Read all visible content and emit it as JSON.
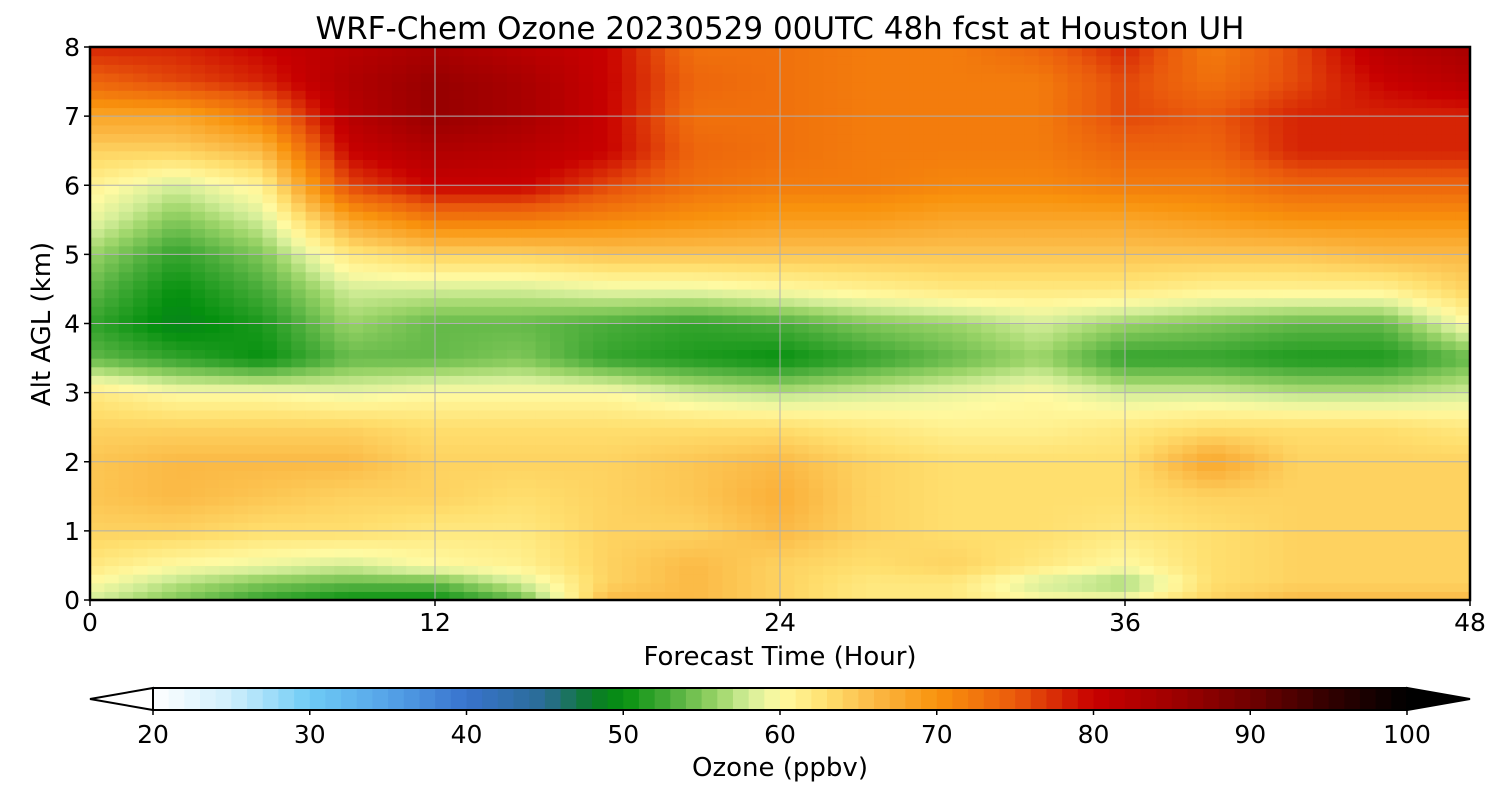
{
  "chart_data": {
    "type": "heatmap",
    "title": "WRF-Chem Ozone  20230529 00UTC 48h fcst at Houston UH",
    "xlabel": "Forecast Time (Hour)",
    "ylabel": "Alt AGL (km)",
    "xlim": [
      0,
      48
    ],
    "ylim": [
      0,
      8
    ],
    "xticks": [
      0,
      12,
      24,
      36,
      48
    ],
    "yticks": [
      0,
      1,
      2,
      3,
      4,
      5,
      6,
      7,
      8
    ],
    "grid": true,
    "x": [
      0,
      3,
      6,
      9,
      12,
      15,
      18,
      21,
      24,
      27,
      30,
      33,
      36,
      39,
      42,
      45,
      48
    ],
    "y": [
      0,
      0.25,
      0.5,
      1,
      1.5,
      2,
      2.5,
      3,
      3.5,
      4,
      4.5,
      5,
      5.5,
      6,
      6.5,
      7,
      7.5,
      8
    ],
    "z": [
      [
        58,
        55,
        52,
        50,
        50,
        54,
        66,
        66,
        64,
        62,
        62,
        60,
        60,
        64,
        66,
        66,
        66
      ],
      [
        60,
        57,
        55,
        54,
        54,
        58,
        64,
        66,
        64,
        62,
        62,
        58,
        56,
        63,
        64,
        64,
        64
      ],
      [
        62,
        60,
        59,
        58,
        60,
        61,
        64,
        66,
        64,
        63,
        64,
        62,
        60,
        63,
        64,
        64,
        64
      ],
      [
        64,
        64,
        63,
        63,
        62,
        62,
        64,
        64,
        66,
        64,
        63,
        63,
        62,
        63,
        64,
        64,
        64
      ],
      [
        65,
        66,
        65,
        64,
        64,
        63,
        64,
        65,
        67,
        64,
        63,
        63,
        63,
        64,
        64,
        64,
        64
      ],
      [
        65,
        66,
        66,
        66,
        64,
        64,
        64,
        65,
        66,
        64,
        63,
        63,
        63,
        68,
        64,
        64,
        64
      ],
      [
        64,
        64,
        64,
        64,
        63,
        63,
        63,
        63,
        63,
        62,
        61,
        61,
        62,
        63,
        63,
        63,
        62
      ],
      [
        62,
        60,
        60,
        59,
        60,
        60,
        60,
        58,
        57,
        58,
        59,
        60,
        58,
        58,
        57,
        57,
        58
      ],
      [
        54,
        52,
        50,
        54,
        54,
        55,
        52,
        51,
        50,
        52,
        54,
        56,
        52,
        52,
        51,
        51,
        54
      ],
      [
        52,
        49,
        51,
        56,
        54,
        54,
        53,
        52,
        53,
        55,
        56,
        58,
        56,
        55,
        54,
        54,
        60
      ],
      [
        54,
        50,
        53,
        58,
        58,
        58,
        59,
        59,
        60,
        61,
        62,
        62,
        62,
        61,
        61,
        61,
        64
      ],
      [
        56,
        52,
        55,
        62,
        64,
        64,
        65,
        65,
        65,
        65,
        65,
        65,
        65,
        65,
        65,
        66,
        66
      ],
      [
        59,
        55,
        58,
        68,
        72,
        72,
        71,
        70,
        69,
        69,
        68,
        68,
        68,
        69,
        70,
        70,
        70
      ],
      [
        61,
        58,
        61,
        76,
        80,
        80,
        76,
        73,
        72,
        72,
        71,
        71,
        72,
        72,
        74,
        74,
        74
      ],
      [
        64,
        64,
        66,
        80,
        83,
        82,
        80,
        74,
        73,
        72,
        72,
        72,
        74,
        74,
        78,
        78,
        78
      ],
      [
        68,
        68,
        72,
        82,
        86,
        84,
        80,
        73,
        73,
        72,
        72,
        72,
        76,
        75,
        78,
        78,
        78
      ],
      [
        74,
        76,
        78,
        83,
        86,
        84,
        80,
        74,
        73,
        72,
        72,
        72,
        76,
        73,
        76,
        80,
        82
      ],
      [
        78,
        78,
        80,
        82,
        84,
        82,
        80,
        73,
        73,
        72,
        72,
        74,
        78,
        72,
        76,
        82,
        84
      ]
    ],
    "colorbar": {
      "label": "Ozone  (ppbv)",
      "min": 20,
      "max": 100,
      "ticks": [
        20,
        30,
        40,
        50,
        60,
        70,
        80,
        90,
        100
      ],
      "extend": "both",
      "colors": [
        {
          "value": 20,
          "color": "#ffffff"
        },
        {
          "value": 25,
          "color": "#cfeefc"
        },
        {
          "value": 30,
          "color": "#6ecbf5"
        },
        {
          "value": 35,
          "color": "#55a3e8"
        },
        {
          "value": 40,
          "color": "#3873cd"
        },
        {
          "value": 45,
          "color": "#2a6c94"
        },
        {
          "value": 48,
          "color": "#0b7a2a"
        },
        {
          "value": 50,
          "color": "#05900f"
        },
        {
          "value": 53,
          "color": "#4aad3a"
        },
        {
          "value": 56,
          "color": "#9bd468"
        },
        {
          "value": 58,
          "color": "#d4ee99"
        },
        {
          "value": 60,
          "color": "#fffaa2"
        },
        {
          "value": 63,
          "color": "#ffdf6e"
        },
        {
          "value": 66,
          "color": "#fbb945"
        },
        {
          "value": 70,
          "color": "#f9930d"
        },
        {
          "value": 75,
          "color": "#ea5a0c"
        },
        {
          "value": 80,
          "color": "#c80000"
        },
        {
          "value": 85,
          "color": "#a00000"
        },
        {
          "value": 90,
          "color": "#700000"
        },
        {
          "value": 95,
          "color": "#320000"
        },
        {
          "value": 100,
          "color": "#000000"
        }
      ],
      "under_color": "#ffffff",
      "over_color": "#000000"
    }
  }
}
